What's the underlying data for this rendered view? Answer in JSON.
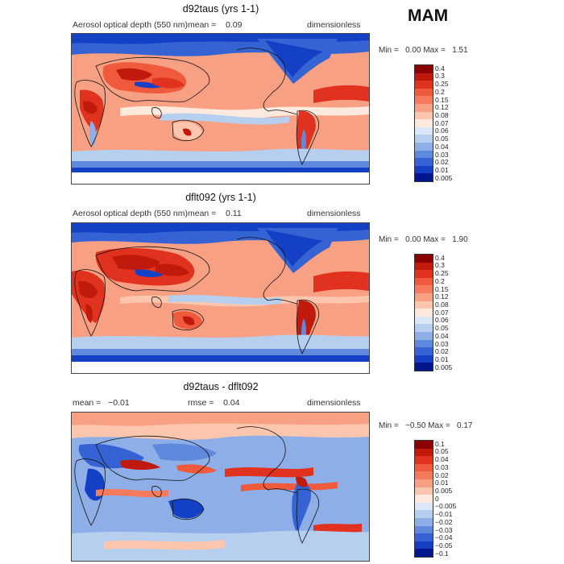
{
  "season": "MAM",
  "panels": [
    {
      "title": "d92taus (yrs 1-1)",
      "left_label": "Aerosol optical depth (550 nm)",
      "mid_label": "mean =",
      "mid_value": "0.09",
      "right_label": "dimensionless",
      "min_label": "Min =",
      "min_value": "0.00",
      "max_label": "Max =",
      "max_value": "1.51",
      "levels": [
        "0.4",
        "0.3",
        "0.25",
        "0.2",
        "0.15",
        "0.12",
        "0.08",
        "0.07",
        "0.06",
        "0.05",
        "0.04",
        "0.03",
        "0.02",
        "0.01",
        "0.005"
      ],
      "colors": [
        "#8b0000",
        "#c01a0c",
        "#e0321e",
        "#ef5a3c",
        "#f47b5e",
        "#f8a083",
        "#fbc6ad",
        "#fde9dd",
        "#dbe7f6",
        "#b6cfee",
        "#8daee6",
        "#5f89dc",
        "#3663d4",
        "#1440c6",
        "#00168c"
      ]
    },
    {
      "title": "dflt092 (yrs 1-1)",
      "left_label": "Aerosol optical depth (550 nm)",
      "mid_label": "mean =",
      "mid_value": "0.11",
      "right_label": "dimensionless",
      "min_label": "Min =",
      "min_value": "0.00",
      "max_label": "Max =",
      "max_value": "1.90",
      "levels": [
        "0.4",
        "0.3",
        "0.25",
        "0.2",
        "0.15",
        "0.12",
        "0.08",
        "0.07",
        "0.06",
        "0.05",
        "0.04",
        "0.03",
        "0.02",
        "0.01",
        "0.005"
      ],
      "colors": [
        "#8b0000",
        "#c01a0c",
        "#e0321e",
        "#ef5a3c",
        "#f47b5e",
        "#f8a083",
        "#fbc6ad",
        "#fde9dd",
        "#dbe7f6",
        "#b6cfee",
        "#8daee6",
        "#5f89dc",
        "#3663d4",
        "#1440c6",
        "#00168c"
      ]
    },
    {
      "title": "d92taus - dflt092",
      "left_label": "mean =",
      "left_value": "−0.01",
      "mid_label": "rmse =",
      "mid_value": "0.04",
      "right_label": "dimensionless",
      "min_label": "Min =",
      "min_value": "−0.50",
      "max_label": "Max =",
      "max_value": "0.17",
      "levels": [
        "0.1",
        "0.05",
        "0.04",
        "0.03",
        "0.02",
        "0.01",
        "0.005",
        "0",
        "−0.005",
        "−0.01",
        "−0.02",
        "−0.03",
        "−0.04",
        "−0.05",
        "−0.1"
      ],
      "colors": [
        "#8b0000",
        "#c01a0c",
        "#e0321e",
        "#ef5a3c",
        "#f47b5e",
        "#f8a083",
        "#fbc6ad",
        "#fde9dd",
        "#dbe7f6",
        "#b6cfee",
        "#8daee6",
        "#5f89dc",
        "#3663d4",
        "#1440c6",
        "#00168c"
      ]
    }
  ]
}
